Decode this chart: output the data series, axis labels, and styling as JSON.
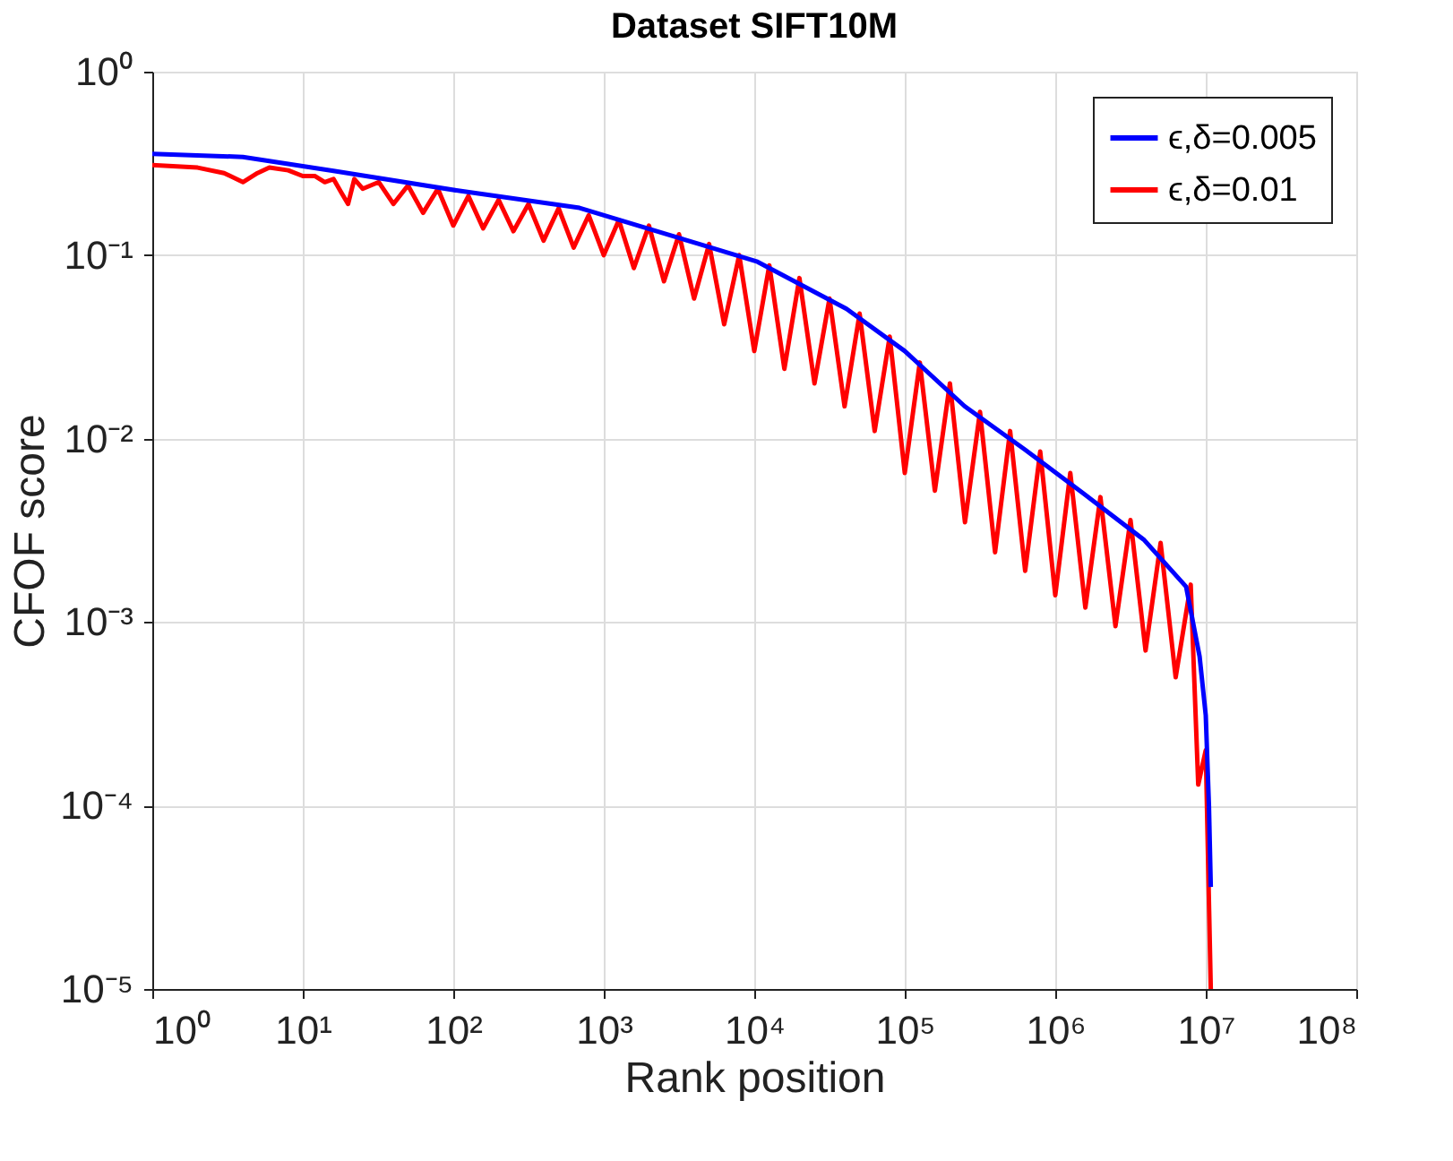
{
  "chart_data": {
    "type": "line",
    "title": "Dataset SIFT10M",
    "xlabel": "Rank position",
    "ylabel": "CFOF score",
    "log": "xy",
    "grid": true,
    "legend": "top right",
    "line_style": "solid",
    "marker": "none",
    "xlim": [
      1,
      100000000
    ],
    "ylim": [
      1e-05,
      1
    ],
    "xticks": [
      {
        "value": 1,
        "label": "10⁰"
      },
      {
        "value": 10,
        "label": "10¹"
      },
      {
        "value": 100,
        "label": "10²"
      },
      {
        "value": 1000,
        "label": "10³"
      },
      {
        "value": 10000,
        "label": "10⁴"
      },
      {
        "value": 100000,
        "label": "10⁵"
      },
      {
        "value": 1000000,
        "label": "10⁶"
      },
      {
        "value": 10000000,
        "label": "10⁷"
      },
      {
        "value": 100000000,
        "label": "10⁸"
      }
    ],
    "yticks": [
      {
        "value": 1e-05,
        "label": "10⁻⁵"
      },
      {
        "value": 0.0001,
        "label": "10⁻⁴"
      },
      {
        "value": 0.001,
        "label": "10⁻³"
      },
      {
        "value": 0.01,
        "label": "10⁻²"
      },
      {
        "value": 0.1,
        "label": "10⁻¹"
      },
      {
        "value": 1,
        "label": "10⁰"
      }
    ],
    "series": [
      {
        "name": "ϵ,δ=0.005",
        "color": "#0000ff",
        "x": [
          1,
          4,
          16,
          110,
          690,
          2700,
          4300,
          10500,
          41000,
          100000,
          250000,
          630000,
          1550000,
          3900000,
          7400000,
          9100000,
          10000000,
          10500000,
          10800000
        ],
        "values": [
          0.356,
          0.343,
          0.288,
          0.224,
          0.181,
          0.129,
          0.115,
          0.092,
          0.051,
          0.03,
          0.015,
          0.0087,
          0.005,
          0.0028,
          0.00156,
          0.00065,
          0.00031,
          0.0001,
          3.6e-05
        ]
      },
      {
        "name": "ϵ,δ=0.01",
        "color": "#ff0000",
        "x": [
          1,
          2,
          3,
          4,
          5,
          6,
          8,
          10,
          12,
          14,
          16,
          18,
          20,
          22,
          25,
          32,
          40,
          50,
          63,
          79,
          100,
          126,
          158,
          200,
          251,
          316,
          398,
          501,
          631,
          794,
          1000,
          1259,
          1585,
          1995,
          2512,
          3162,
          3981,
          5012,
          6310,
          7943,
          10000,
          12589,
          15849,
          19953,
          25119,
          31623,
          39811,
          50119,
          63096,
          79433,
          100000,
          125893,
          158489,
          199526,
          251189,
          316228,
          398107,
          501187,
          630957,
          794328,
          1000000,
          1258925,
          1584893,
          1995262,
          2511886,
          3162278,
          3981072,
          5011872,
          6309573,
          7943282,
          8912509,
          10000000,
          10800000
        ],
        "values": [
          0.31,
          0.3,
          0.28,
          0.25,
          0.28,
          0.3,
          0.29,
          0.27,
          0.27,
          0.25,
          0.26,
          0.22,
          0.19,
          0.26,
          0.23,
          0.25,
          0.19,
          0.24,
          0.17,
          0.23,
          0.145,
          0.21,
          0.14,
          0.2,
          0.135,
          0.19,
          0.12,
          0.18,
          0.11,
          0.165,
          0.1,
          0.155,
          0.085,
          0.145,
          0.072,
          0.13,
          0.058,
          0.115,
          0.042,
          0.1,
          0.03,
          0.088,
          0.024,
          0.075,
          0.02,
          0.058,
          0.015,
          0.048,
          0.011,
          0.036,
          0.0065,
          0.026,
          0.0052,
          0.02,
          0.0035,
          0.014,
          0.0024,
          0.011,
          0.0019,
          0.0085,
          0.0014,
          0.0065,
          0.0012,
          0.0048,
          0.00095,
          0.0036,
          0.0007,
          0.0027,
          0.0005,
          0.0016,
          0.00013,
          0.0002,
          1e-05
        ]
      }
    ]
  }
}
